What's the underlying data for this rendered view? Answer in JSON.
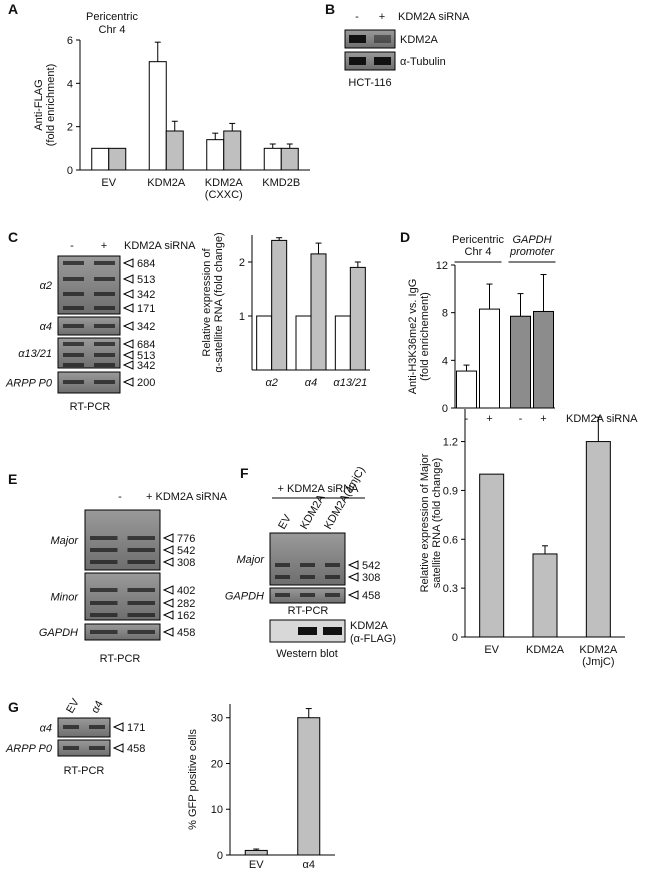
{
  "panel_labels": [
    "A",
    "B",
    "C",
    "D",
    "E",
    "F",
    "G"
  ],
  "chart_data": [
    {
      "type": "bar",
      "ylabel": [
        "Anti-FLAG",
        "(fold enrichment)"
      ],
      "annotation": [
        "Pericentric",
        "Chr 4"
      ],
      "categories": [
        "EV",
        "KDM2A",
        [
          "KDM2A",
          "(CXXC)"
        ],
        "KMD2B"
      ],
      "series": [
        {
          "color": "#ffffff",
          "values": [
            1,
            5.0,
            1.4,
            1.0
          ],
          "errors": [
            null,
            0.9,
            0.3,
            0.2
          ]
        },
        {
          "color": "#bfbfbf",
          "values": [
            1,
            1.8,
            1.8,
            1.0
          ],
          "errors": [
            null,
            0.45,
            0.35,
            0.2
          ]
        }
      ],
      "ylim": [
        0,
        6
      ],
      "yticks": [
        0,
        2,
        4,
        6
      ]
    },
    {
      "type": "bar",
      "ylabel": [
        "Relative expression of",
        "α-satellite RNA (fold change)"
      ],
      "categories": [
        "α2",
        "α4",
        "α13/21"
      ],
      "series": [
        {
          "color": "#ffffff",
          "values": [
            1,
            1,
            1
          ],
          "errors": [
            null,
            null,
            null
          ]
        },
        {
          "color": "#bfbfbf",
          "values": [
            2.4,
            2.15,
            1.9
          ],
          "errors": [
            0.05,
            0.2,
            0.1
          ]
        }
      ],
      "ylim": [
        0,
        2.5
      ],
      "yticks": [
        1,
        2
      ]
    },
    {
      "type": "bar",
      "ylabel": [
        "Anti-H3K36me2 vs. IgG",
        "(fold enrichement)"
      ],
      "groups": [
        [
          "Pericentric",
          "Chr 4"
        ],
        [
          "GAPDH",
          "promoter"
        ]
      ],
      "xlabel": "KDM2A siRNA",
      "categories": [
        "-",
        "+",
        "-",
        "+"
      ],
      "series": [
        {
          "colors": [
            "#ffffff",
            "#ffffff",
            "#8c8c8c",
            "#8c8c8c"
          ],
          "values": [
            3.1,
            8.3,
            7.7,
            8.1
          ],
          "errors": [
            0.5,
            2.1,
            1.9,
            3.1
          ]
        }
      ],
      "ylim": [
        0,
        12
      ],
      "yticks": [
        0,
        4,
        8,
        12
      ]
    },
    {
      "type": "bar",
      "ylabel": [
        "Relative expression of Major",
        "satellite RNA (fold change)"
      ],
      "categories": [
        "EV",
        "KDM2A",
        [
          "KDM2A",
          "(JmjC)"
        ]
      ],
      "series": [
        {
          "color": "#bfbfbf",
          "values": [
            1.0,
            0.51,
            1.2
          ],
          "errors": [
            null,
            0.05,
            0.15
          ]
        }
      ],
      "ylim": [
        0,
        1.4
      ],
      "yticks": [
        0,
        0.3,
        0.6,
        0.9,
        1.2
      ]
    },
    {
      "type": "bar",
      "ylabel": [
        "% GFP positive cells"
      ],
      "categories": [
        "EV",
        "α4"
      ],
      "series": [
        {
          "color": "#bfbfbf",
          "values": [
            1,
            30
          ],
          "errors": [
            0.3,
            2
          ]
        }
      ],
      "ylim": [
        0,
        33
      ],
      "yticks": [
        0,
        10,
        20,
        30
      ]
    }
  ],
  "gel_b": {
    "lanes": [
      "-",
      "+"
    ],
    "header": "KDM2A siRNA",
    "rows": [
      {
        "label": "KDM2A",
        "sizes": []
      },
      {
        "label": "α-Tubulin",
        "sizes": []
      }
    ],
    "footer": "HCT-116"
  },
  "gel_c": {
    "lanes": [
      "-",
      "+"
    ],
    "header": "KDM2A siRNA",
    "rows": [
      {
        "label": "α2",
        "sizes": [
          684,
          513,
          342,
          171
        ]
      },
      {
        "label": "α4",
        "sizes": [
          342
        ]
      },
      {
        "label": "α13/21",
        "sizes": [
          684,
          513,
          342
        ]
      },
      {
        "label": "ARPP P0",
        "sizes": [
          200
        ]
      }
    ],
    "footer": "RT-PCR"
  },
  "gel_e": {
    "lanes": [
      "-",
      "+ KDM2A siRNA"
    ],
    "rows": [
      {
        "label": "Major",
        "sizes": [
          776,
          542,
          308
        ]
      },
      {
        "label": "Minor",
        "sizes": [
          402,
          282,
          162
        ]
      },
      {
        "label": "GAPDH",
        "sizes": [
          458
        ]
      }
    ],
    "footer": "RT-PCR"
  },
  "gel_f": {
    "header": "+ KDM2A siRNA",
    "lanes": [
      "EV",
      "KDM2A",
      "KDM2A(JmjC)"
    ],
    "rows": [
      {
        "label": "Major",
        "sizes": [
          542,
          308
        ]
      },
      {
        "label": "GAPDH",
        "sizes": [
          458
        ]
      }
    ],
    "footer": "RT-PCR",
    "western": {
      "label": [
        "KDM2A",
        "(α-FLAG)"
      ],
      "footer": "Western blot"
    }
  },
  "gel_g": {
    "lanes": [
      "EV",
      "α4"
    ],
    "rows": [
      {
        "label": "α4",
        "sizes": [
          171
        ]
      },
      {
        "label": "ARPP P0",
        "sizes": [
          458
        ]
      }
    ],
    "footer": "RT-PCR"
  }
}
